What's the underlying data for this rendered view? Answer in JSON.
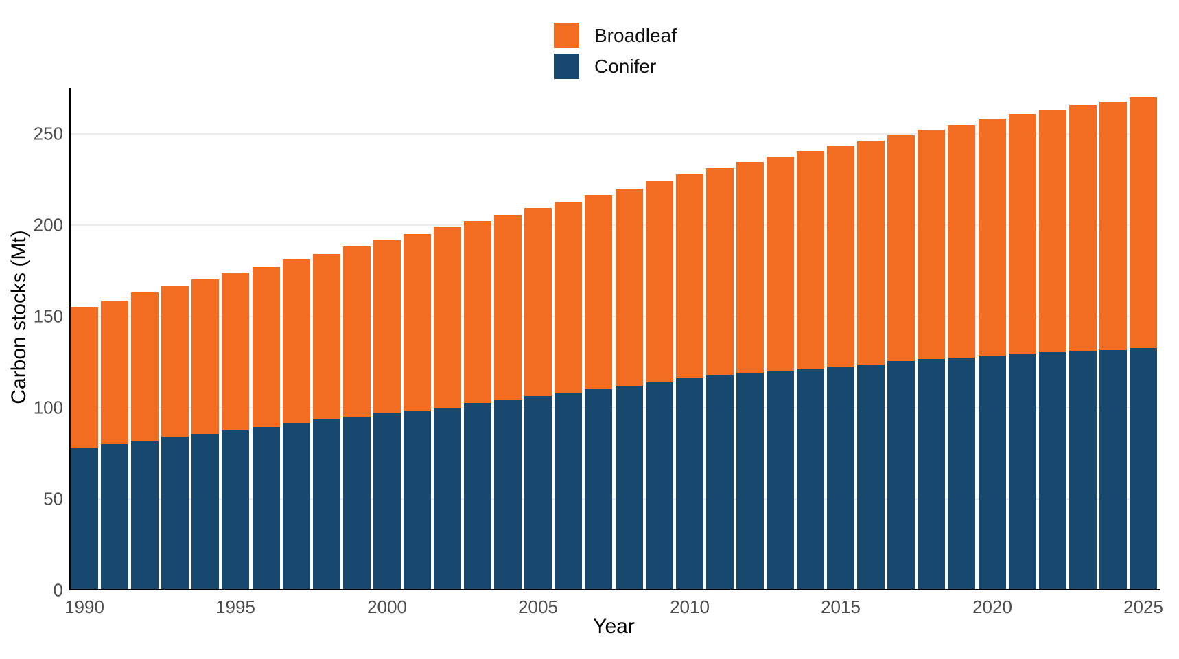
{
  "chart_data": {
    "type": "bar",
    "stacked": true,
    "title": "",
    "xlabel": "Year",
    "ylabel": "Carbon stocks (Mt)",
    "categories": [
      1990,
      1991,
      1992,
      1993,
      1994,
      1995,
      1996,
      1997,
      1998,
      1999,
      2000,
      2001,
      2002,
      2003,
      2004,
      2005,
      2006,
      2007,
      2008,
      2009,
      2010,
      2011,
      2012,
      2013,
      2014,
      2015,
      2016,
      2017,
      2018,
      2019,
      2020,
      2021,
      2022,
      2023,
      2024,
      2025
    ],
    "series": [
      {
        "name": "Broadleaf",
        "color": "#F26C21",
        "values": [
          77,
          78.5,
          81,
          82.5,
          84.5,
          86.5,
          87.5,
          89.5,
          90.5,
          93,
          94.5,
          96.5,
          99,
          99.5,
          101,
          103,
          105,
          106.5,
          108,
          110,
          111.5,
          113.5,
          115.5,
          117.5,
          119,
          121,
          122.5,
          123.5,
          125.5,
          127.5,
          129.5,
          131,
          132.5,
          134.5,
          136,
          137
        ]
      },
      {
        "name": "Conifer",
        "color": "#17486E",
        "values": [
          78,
          80,
          82,
          84,
          85.5,
          87.5,
          89.5,
          91.5,
          93.5,
          95,
          97,
          98.5,
          100,
          102.5,
          104.5,
          106.5,
          108,
          110,
          112,
          114,
          116,
          117.5,
          119,
          120,
          121.5,
          122.5,
          123.5,
          125.5,
          126.5,
          127.5,
          128.5,
          129.5,
          130.5,
          131,
          131.5,
          132.5
        ]
      }
    ],
    "stack_bottom_to_top": [
      "Conifer",
      "Broadleaf"
    ],
    "totals_1990_and_2025": [
      155,
      269.5
    ],
    "ylim": [
      0,
      275
    ],
    "yticks": [
      0,
      50,
      100,
      150,
      200,
      250
    ],
    "xticks": [
      1990,
      1995,
      2000,
      2005,
      2010,
      2015,
      2020,
      2025
    ],
    "grid": "horizontal-light-gray",
    "legend_position": "top-center",
    "axis_color": "#000000",
    "tick_label_color": "#4d4d4d",
    "gridline_color": "#ececec",
    "background_color": "#ffffff"
  },
  "legend": {
    "items": [
      {
        "label": "Broadleaf",
        "color": "#F26C21"
      },
      {
        "label": "Conifer",
        "color": "#17486E"
      }
    ]
  },
  "axes": {
    "x_title": "Year",
    "y_title": "Carbon stocks (Mt)"
  }
}
